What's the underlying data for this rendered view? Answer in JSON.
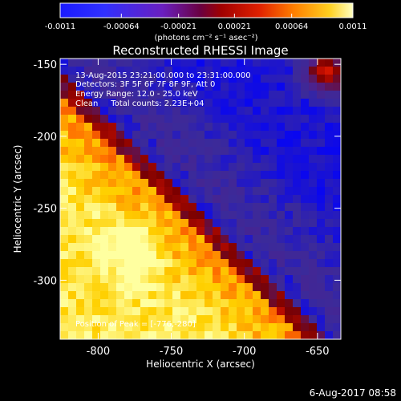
{
  "colorbar": {
    "ticks": [
      "-0.0011",
      "-0.00064",
      "-0.00021",
      "0.00021",
      "0.00064",
      "0.0011"
    ],
    "tick_values": [
      -0.0011,
      -0.00064,
      -0.00021,
      0.00021,
      0.00064,
      0.0011
    ],
    "range": [
      -0.0011,
      0.0011
    ],
    "unit_label": "(photons cm⁻² s⁻¹ asec⁻²)"
  },
  "title": "Reconstructed RHESSI Image",
  "annotations": {
    "time_range": "13-Aug-2015 23:21:00.000 to 23:31:00.000",
    "detectors": "Detectors: 3F 5F 6F 7F 8F 9F, Att 0",
    "energy_range": "Energy Range: 12.0 - 25.0 keV",
    "clean_counts": "Clean     Total counts: 2.23E+04",
    "peak_position": "Position of Peak = [-776,-280]"
  },
  "axes": {
    "xlabel": "Heliocentric X (arcsec)",
    "ylabel": "Heliocentric Y (arcsec)",
    "xticks": [
      "-800",
      "-750",
      "-700",
      "-650"
    ],
    "xtick_values": [
      -800,
      -750,
      -700,
      -650
    ],
    "yticks": [
      "-150",
      "-200",
      "-250",
      "-300"
    ],
    "ytick_values": [
      -150,
      -200,
      -250,
      -300
    ],
    "xlim": [
      -826,
      -634
    ],
    "ylim": [
      -341,
      -146
    ]
  },
  "colors": {
    "colormap": [
      "#000000",
      "#0000ff",
      "#3b2a9a",
      "#50208a",
      "#7a0000",
      "#d01000",
      "#ff7000",
      "#ffd000",
      "#ffffa0"
    ]
  },
  "footer": {
    "timestamp": "6-Aug-2017 08:58"
  }
}
